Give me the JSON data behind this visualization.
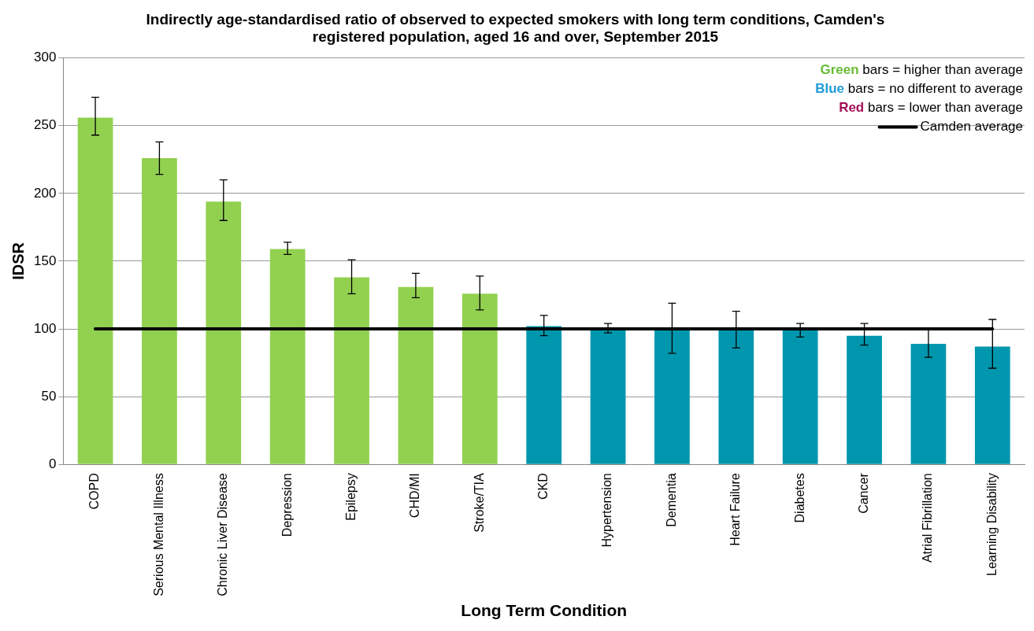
{
  "chart_data": {
    "type": "bar",
    "title": "Indirectly age-standardised ratio of observed to expected smokers with long term conditions, Camden's registered population, aged 16 and over, September 2015",
    "xlabel": "Long Term Condition",
    "ylabel": "IDSR",
    "categories": [
      "COPD",
      "Serious Mental Illness",
      "Chronic Liver Disease",
      "Depression",
      "Epilepsy",
      "CHD/MI",
      "Stroke/TIA",
      "CKD",
      "Hypertension",
      "Dementia",
      "Heart Failure",
      "Diabetes",
      "Cancer",
      "Atrial Fibrillation",
      "Learning Disability"
    ],
    "values": [
      256,
      226,
      194,
      159,
      138,
      131,
      126,
      102,
      100,
      100,
      100,
      100,
      95,
      89,
      87
    ],
    "colors": [
      "#92d050",
      "#92d050",
      "#92d050",
      "#92d050",
      "#92d050",
      "#92d050",
      "#92d050",
      "#0097ae",
      "#0097ae",
      "#0097ae",
      "#0097ae",
      "#0097ae",
      "#0097ae",
      "#0097ae",
      "#0097ae"
    ],
    "errors": [
      [
        243,
        271
      ],
      [
        214,
        238
      ],
      [
        180,
        210
      ],
      [
        155,
        164
      ],
      [
        126,
        151
      ],
      [
        123,
        141
      ],
      [
        114,
        139
      ],
      [
        95,
        110
      ],
      [
        97,
        104
      ],
      [
        82,
        119
      ],
      [
        86,
        113
      ],
      [
        94,
        104
      ],
      [
        88,
        104
      ],
      [
        79,
        100
      ],
      [
        71,
        107
      ]
    ],
    "ylim": [
      0,
      300
    ],
    "yticks": [
      0,
      50,
      100,
      150,
      200,
      250,
      300
    ],
    "grid": "y",
    "ref_lines": [
      {
        "axis": "y",
        "value": 100,
        "label": "Camden average",
        "color": "#000000"
      }
    ],
    "annotations": [
      "Green bars = higher than average",
      "Blue bars = no different to average",
      "Red bars = lower than average"
    ]
  }
}
